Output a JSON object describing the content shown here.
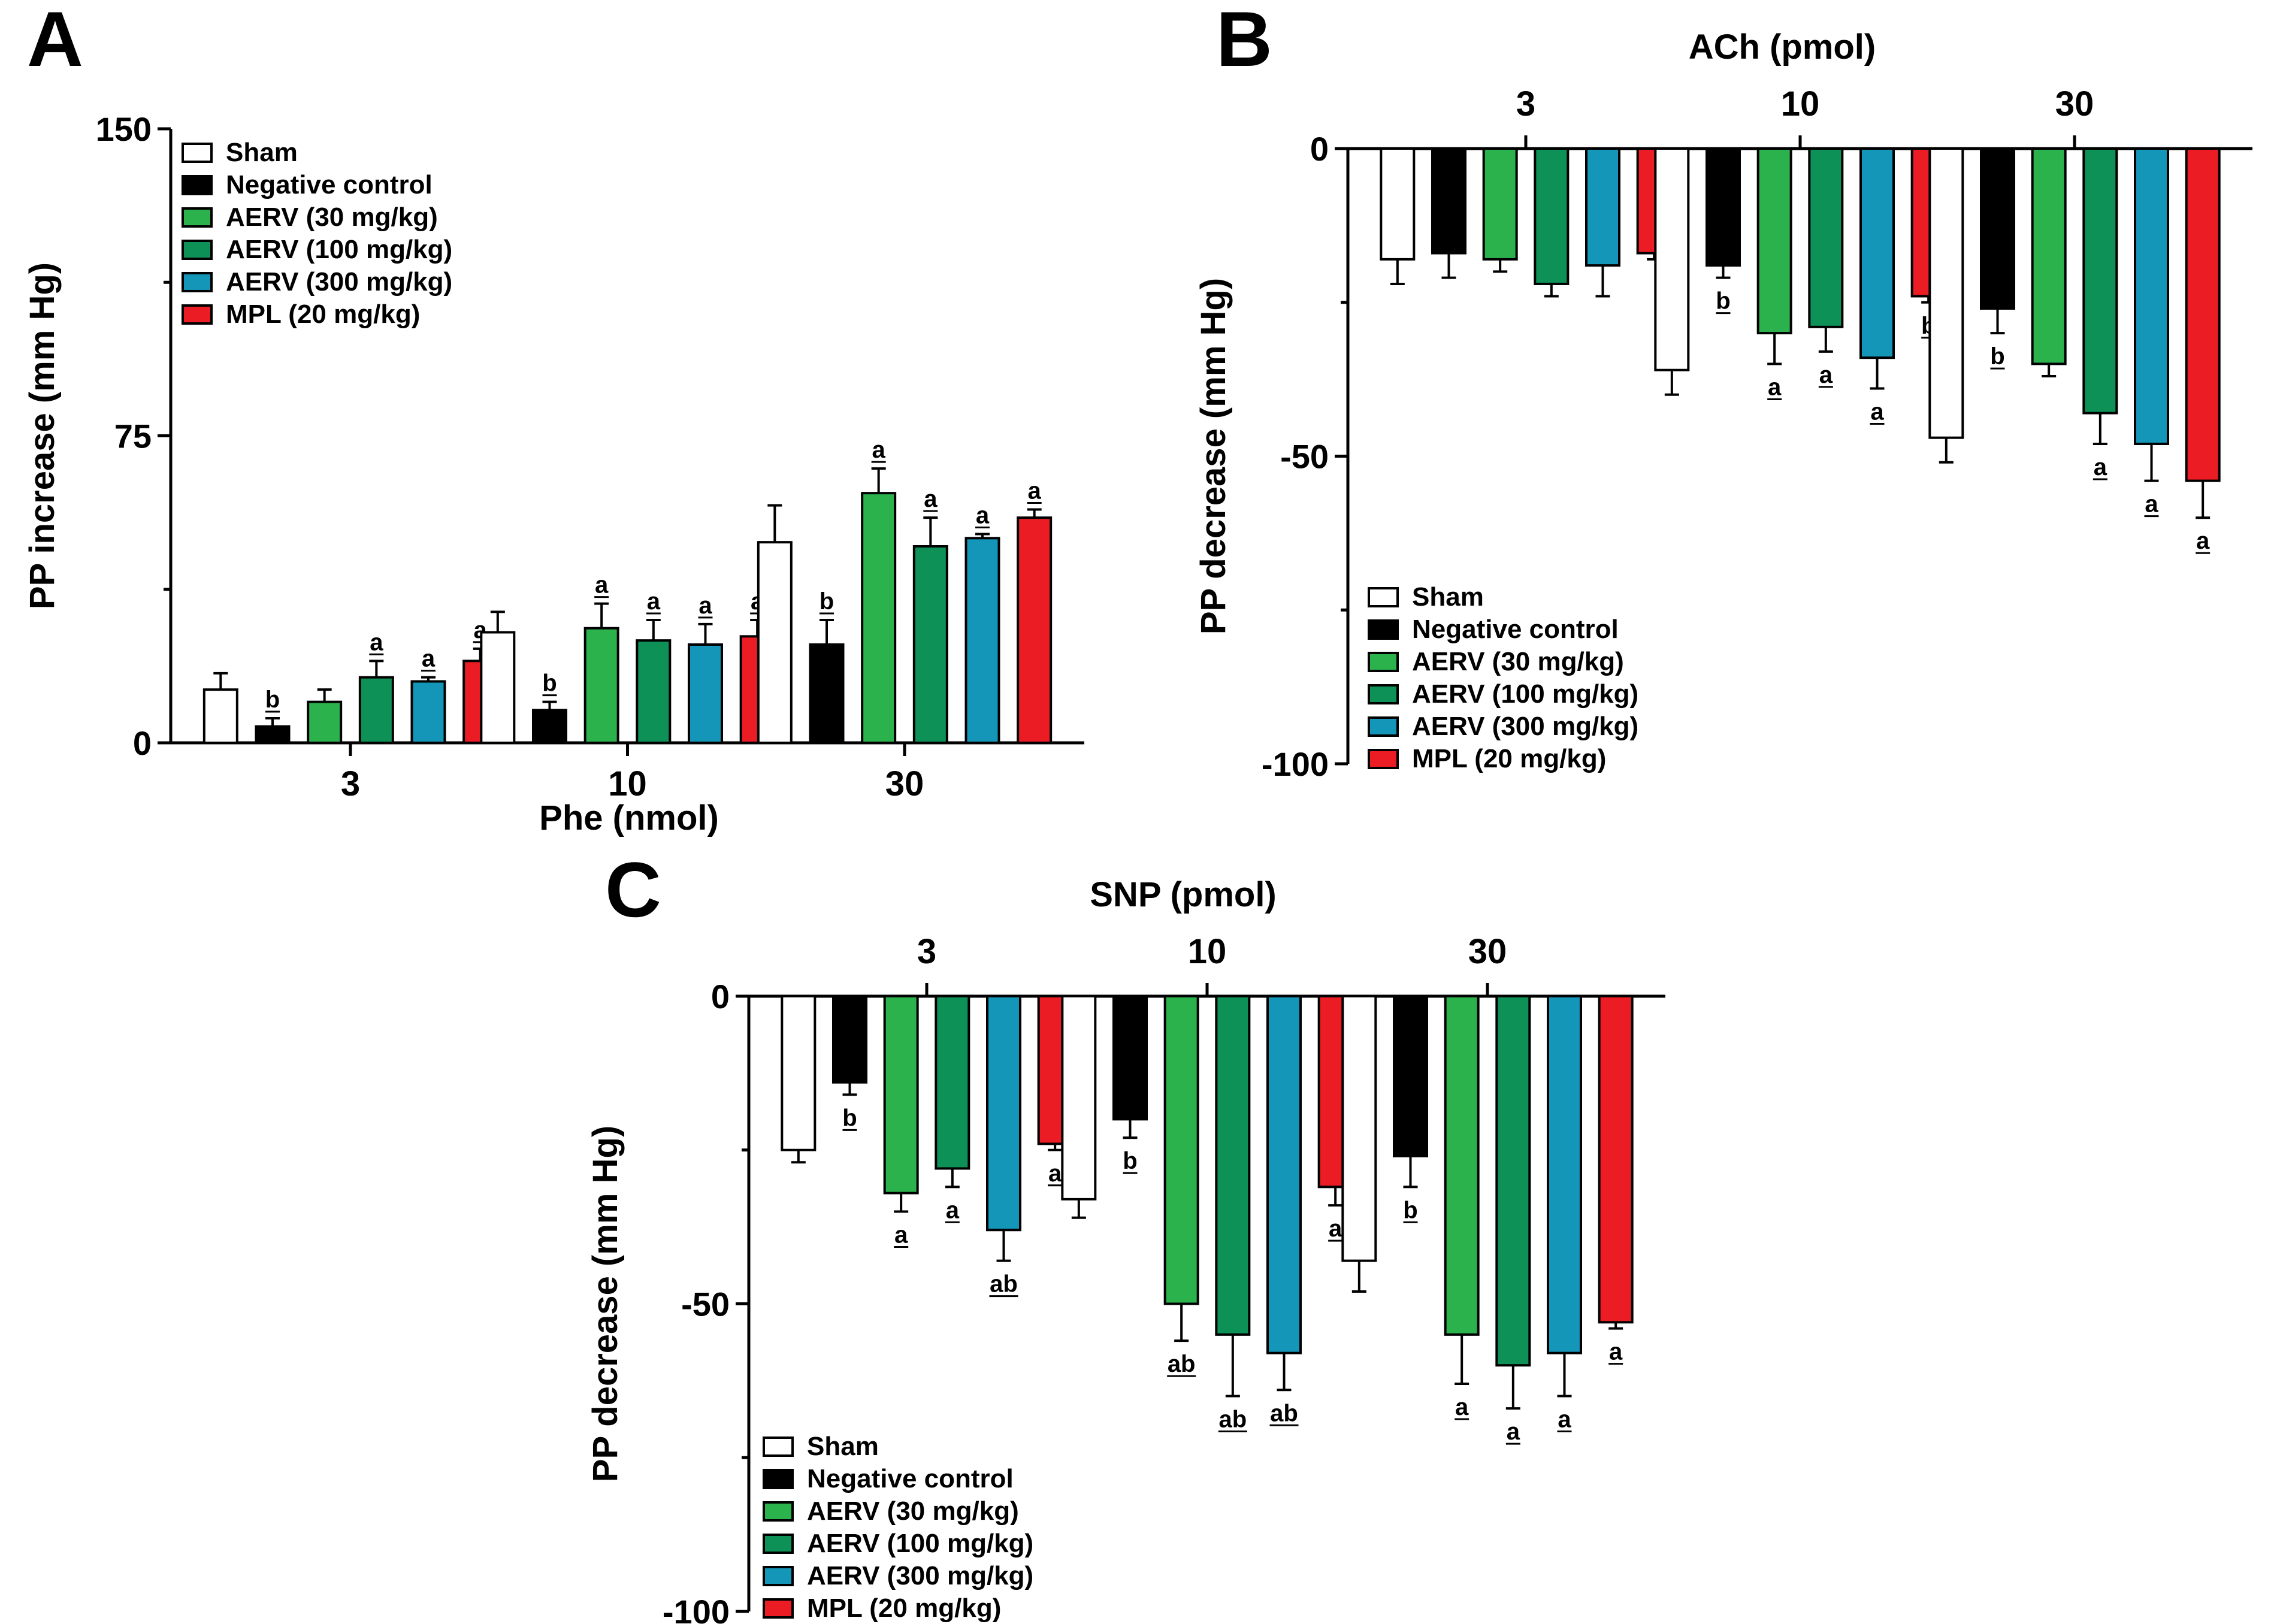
{
  "figure": {
    "colors": {
      "sham": "#ffffff",
      "negative_control": "#000000",
      "aerv_30": "#2bb24c",
      "aerv_100": "#0e9156",
      "aerv_300": "#1496b8",
      "mpl_20": "#ec1c24"
    }
  },
  "chart_data": [
    {
      "panel": "A",
      "type": "bar",
      "xlabel": "Phe (nmol)",
      "ylabel": "PP increase (mm Hg)",
      "ylim": [
        0,
        150
      ],
      "yticks": [
        "0",
        "75",
        "150"
      ],
      "categories": [
        "3",
        "10",
        "30"
      ],
      "legend": "top-left",
      "series": [
        {
          "name": "Sham",
          "values": [
            13,
            27,
            49
          ],
          "errors": [
            4,
            5,
            9
          ],
          "sig": [
            "",
            "",
            ""
          ]
        },
        {
          "name": "Negative control",
          "values": [
            4,
            8,
            24
          ],
          "errors": [
            2,
            2,
            6
          ],
          "sig": [
            "b",
            "b",
            "b"
          ]
        },
        {
          "name": "AERV (30 mg/kg)",
          "values": [
            10,
            28,
            61
          ],
          "errors": [
            3,
            6,
            6
          ],
          "sig": [
            "",
            "a",
            "a"
          ]
        },
        {
          "name": "AERV (100 mg/kg)",
          "values": [
            16,
            25,
            48
          ],
          "errors": [
            4,
            5,
            7
          ],
          "sig": [
            "a",
            "a",
            "a"
          ]
        },
        {
          "name": "AERV (300 mg/kg)",
          "values": [
            15,
            24,
            50
          ],
          "errors": [
            1,
            5,
            1
          ],
          "sig": [
            "a",
            "a",
            "a"
          ]
        },
        {
          "name": "MPL (20 mg/kg)",
          "values": [
            20,
            26,
            55
          ],
          "errors": [
            3,
            4,
            2
          ],
          "sig": [
            "a",
            "a",
            "a"
          ]
        }
      ]
    },
    {
      "panel": "B",
      "type": "bar",
      "xlabel": "ACh (pmol)",
      "ylabel": "PP decrease (mm Hg)",
      "ylim": [
        -100,
        0
      ],
      "yticks": [
        "0",
        "-50",
        "-100"
      ],
      "categories": [
        "3",
        "10",
        "30"
      ],
      "legend": "bottom-left",
      "series": [
        {
          "name": "Sham",
          "values": [
            -18,
            -36,
            -47
          ],
          "errors": [
            4,
            4,
            4
          ],
          "sig": [
            "",
            "",
            ""
          ]
        },
        {
          "name": "Negative control",
          "values": [
            -17,
            -19,
            -26
          ],
          "errors": [
            4,
            2,
            4
          ],
          "sig": [
            "",
            "b",
            "b"
          ]
        },
        {
          "name": "AERV (30 mg/kg)",
          "values": [
            -18,
            -30,
            -35
          ],
          "errors": [
            2,
            5,
            2
          ],
          "sig": [
            "",
            "a",
            ""
          ]
        },
        {
          "name": "AERV (100 mg/kg)",
          "values": [
            -22,
            -29,
            -43
          ],
          "errors": [
            2,
            4,
            5
          ],
          "sig": [
            "",
            "a",
            "a"
          ]
        },
        {
          "name": "AERV (300 mg/kg)",
          "values": [
            -19,
            -34,
            -48
          ],
          "errors": [
            5,
            5,
            6
          ],
          "sig": [
            "",
            "a",
            "a"
          ]
        },
        {
          "name": "MPL (20 mg/kg)",
          "values": [
            -17,
            -24,
            -54
          ],
          "errors": [
            1,
            1,
            6
          ],
          "sig": [
            "",
            "b",
            "a"
          ]
        }
      ]
    },
    {
      "panel": "C",
      "type": "bar",
      "xlabel": "SNP (pmol)",
      "ylabel": "PP decrease (mm Hg)",
      "ylim": [
        -100,
        0
      ],
      "yticks": [
        "0",
        "-50",
        "-100"
      ],
      "categories": [
        "3",
        "10",
        "30"
      ],
      "legend": "bottom-left",
      "series": [
        {
          "name": "Sham",
          "values": [
            -25,
            -33,
            -43
          ],
          "errors": [
            2,
            3,
            5
          ],
          "sig": [
            "",
            "",
            ""
          ]
        },
        {
          "name": "Negative control",
          "values": [
            -14,
            -20,
            -26
          ],
          "errors": [
            2,
            3,
            5
          ],
          "sig": [
            "b",
            "b",
            "b"
          ]
        },
        {
          "name": "AERV (30 mg/kg)",
          "values": [
            -32,
            -50,
            -55
          ],
          "errors": [
            3,
            6,
            8
          ],
          "sig": [
            "a",
            "ab",
            "a"
          ]
        },
        {
          "name": "AERV (100 mg/kg)",
          "values": [
            -28,
            -55,
            -60
          ],
          "errors": [
            3,
            10,
            7
          ],
          "sig": [
            "a",
            "ab",
            "a"
          ]
        },
        {
          "name": "AERV (300 mg/kg)",
          "values": [
            -38,
            -58,
            -58
          ],
          "errors": [
            5,
            6,
            7
          ],
          "sig": [
            "ab",
            "ab",
            "a"
          ]
        },
        {
          "name": "MPL (20 mg/kg)",
          "values": [
            -24,
            -31,
            -53
          ],
          "errors": [
            1,
            3,
            1
          ],
          "sig": [
            "a",
            "a",
            "a"
          ]
        }
      ]
    }
  ]
}
